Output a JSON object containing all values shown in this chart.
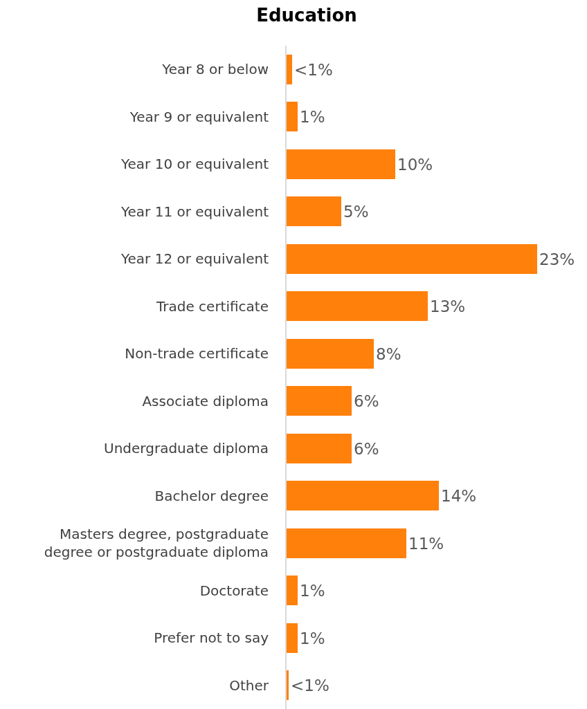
{
  "chart_data": {
    "type": "bar",
    "orientation": "horizontal",
    "title": "Education",
    "categories": [
      "Year 8 or below",
      "Year 9 or equivalent",
      "Year 10 or equivalent",
      "Year 11 or equivalent",
      "Year 12 or equivalent",
      "Trade certificate",
      "Non-trade certificate",
      "Associate diploma",
      "Undergraduate diploma",
      "Bachelor degree",
      "Masters degree, postgraduate\ndegree or postgraduate diploma",
      "Doctorate",
      "Prefer not to say",
      "Other"
    ],
    "values": [
      0.5,
      1,
      10,
      5,
      23,
      13,
      8,
      6,
      6,
      14,
      11,
      1,
      1,
      0.2
    ],
    "value_labels": [
      "<1%",
      "1%",
      "10%",
      "5%",
      "23%",
      "13%",
      "8%",
      "6%",
      "6%",
      "14%",
      "11%",
      "1%",
      "1%",
      "<1%"
    ],
    "color": "#ff800a"
  }
}
